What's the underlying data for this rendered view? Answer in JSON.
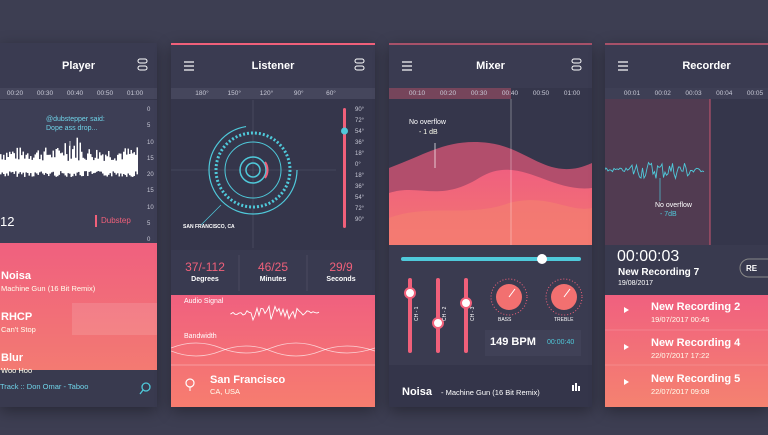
{
  "player": {
    "title": "Player",
    "timeline": [
      "00:20",
      "00:30",
      "00:40",
      "00:50",
      "01:00"
    ],
    "scale": [
      "0",
      "5",
      "10",
      "15",
      "20",
      "15",
      "10",
      "5",
      "0"
    ],
    "comment_user": "@dubstepper said:",
    "comment_text": "Dope ass drop...",
    "counter": "12",
    "genre": "Dubstep",
    "tracks": [
      {
        "artist": "Noisa",
        "song": "Machine Gun (16 Bit Remix)"
      },
      {
        "artist": "RHCP",
        "song": "Can't Stop"
      },
      {
        "artist": "Blur",
        "song": "Woo Hoo"
      }
    ],
    "now_playing": "Track :: Don Omar - Taboo"
  },
  "listener": {
    "title": "Listener",
    "dial_ticks": [
      "180°",
      "150°",
      "120°",
      "90°",
      "60°"
    ],
    "scale": [
      "90°",
      "72°",
      "54°",
      "36°",
      "18°",
      "0°",
      "18°",
      "36°",
      "54°",
      "72°",
      "90°"
    ],
    "location_label": "SAN FRANCISCO, CA",
    "stats": [
      {
        "value": "37/-112",
        "label": "Degrees"
      },
      {
        "value": "46/25",
        "label": "Minutes"
      },
      {
        "value": "29/9",
        "label": "Seconds"
      }
    ],
    "audio_signal": "Audio Signal",
    "bandwidth": "Bandwidth",
    "city": "San Francisco",
    "region": "CA, USA"
  },
  "mixer": {
    "title": "Mixer",
    "timeline": [
      "00:10",
      "00:20",
      "00:30",
      "00:40",
      "00:50",
      "01:00"
    ],
    "overflow": "No overflow",
    "overflow_db": "- 1 dB",
    "channels": [
      "CH - 1",
      "CH - 2",
      "CH - 3"
    ],
    "bass": "BASS",
    "treble": "TREBLE",
    "bpm": "149 BPM",
    "time": "00:00:40",
    "artist": "Noisa",
    "song": "- Machine Gun (16 Bit Remix)"
  },
  "recorder": {
    "title": "Recorder",
    "timeline": [
      "00:01",
      "00:02",
      "00:03",
      "00:04",
      "00:05"
    ],
    "overflow": "No overflow",
    "overflow_db": "- 7dB",
    "elapsed": "00:00:03",
    "current_name": "New Recording 7",
    "current_date": "19/08/2017",
    "button": "RE",
    "recordings": [
      {
        "name": "New Recording 2",
        "date": "19/07/2017 00:45"
      },
      {
        "name": "New Recording 4",
        "date": "22/07/2017 17:22"
      },
      {
        "name": "New Recording 5",
        "date": "22/07/2017 09:08"
      }
    ]
  }
}
